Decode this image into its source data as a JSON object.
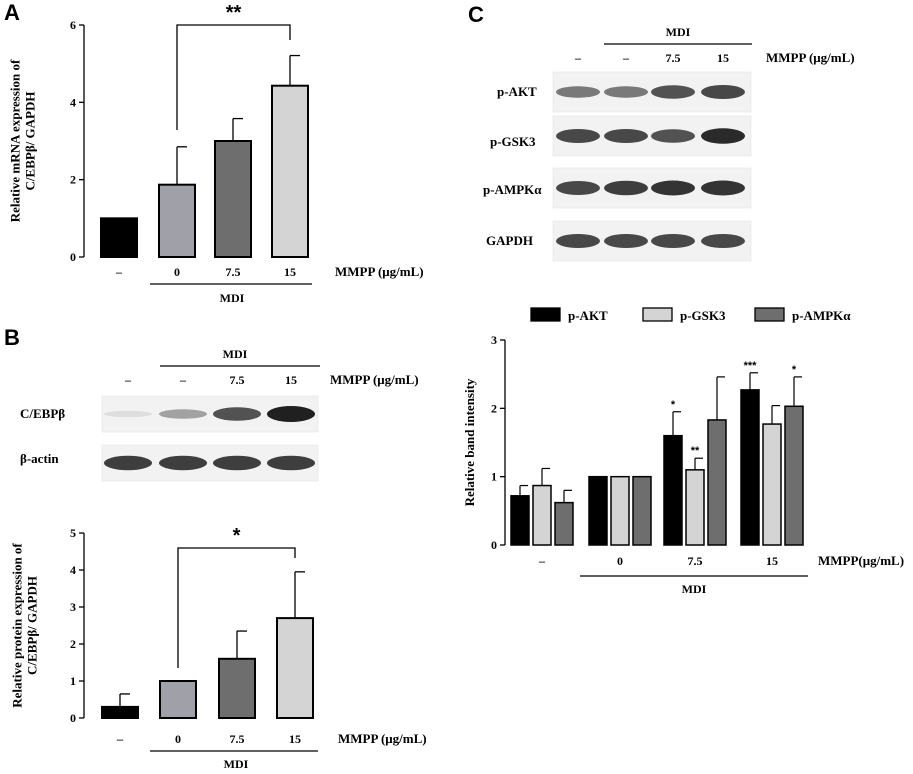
{
  "panels": {
    "a": "A",
    "b": "B",
    "c": "C"
  },
  "common": {
    "mdi": "MDI",
    "dash": "–",
    "mmpp_unit": "MMPP (μg/mL)",
    "mmpp_unit_c": "MMPP(μg/mL)"
  },
  "blots": {
    "b": {
      "header": [
        "–",
        "–",
        "7.5",
        "15"
      ],
      "rows": [
        {
          "label": "C/EBPβ",
          "bands": [
            0.05,
            0.35,
            0.75,
            1.0
          ]
        },
        {
          "label": "β-actin",
          "bands": [
            0.85,
            0.85,
            0.85,
            0.85
          ]
        }
      ]
    },
    "c": {
      "header": [
        "–",
        "–",
        "7.5",
        "15"
      ],
      "rows": [
        {
          "label": "p-AKT",
          "bands": [
            0.55,
            0.55,
            0.75,
            0.8
          ]
        },
        {
          "label": "p-GSK3",
          "bands": [
            0.8,
            0.8,
            0.75,
            0.95
          ]
        },
        {
          "label": "p-AMPKα",
          "bands": [
            0.8,
            0.85,
            0.9,
            0.9
          ]
        },
        {
          "label": "GAPDH",
          "bands": [
            0.8,
            0.8,
            0.8,
            0.8
          ]
        }
      ]
    }
  },
  "chart_data": [
    {
      "id": "a",
      "type": "bar",
      "categories": [
        "–",
        "0",
        "7.5",
        "15"
      ],
      "values": [
        1.0,
        1.87,
        3.0,
        4.43
      ],
      "errors": [
        0,
        0.98,
        0.58,
        0.78
      ],
      "colors": [
        "#000000",
        "#a0a0a8",
        "#6e6e6e",
        "#d4d4d4"
      ],
      "ylabel": "Relative mRNA expression of C/EBPβ/ GAPDH",
      "ylim": [
        0,
        6
      ],
      "yticks": [
        "0",
        "2",
        "4",
        "6"
      ],
      "significance": {
        "from": 1,
        "to": 3,
        "label": "**"
      }
    },
    {
      "id": "b",
      "type": "bar",
      "categories": [
        "–",
        "0",
        "7.5",
        "15"
      ],
      "values": [
        0.3,
        1.0,
        1.6,
        2.7
      ],
      "errors": [
        0.35,
        0,
        0.75,
        1.25
      ],
      "colors": [
        "#000000",
        "#a0a0a8",
        "#6e6e6e",
        "#d4d4d4"
      ],
      "ylabel": "Relative protein expression of C/EBPβ/ GAPDH",
      "ylim": [
        0,
        5
      ],
      "yticks": [
        "0",
        "1",
        "2",
        "3",
        "4",
        "5"
      ],
      "significance": {
        "from": 1,
        "to": 3,
        "label": "*"
      }
    },
    {
      "id": "c",
      "type": "bar",
      "categories": [
        "–",
        "0",
        "7.5",
        "15"
      ],
      "ylabel": "Relative band intensity",
      "ylim": [
        0,
        3
      ],
      "yticks": [
        "0",
        "1",
        "2",
        "3"
      ],
      "legend": "top",
      "series": [
        {
          "name": "p-AKT",
          "color": "#000000",
          "values": [
            0.72,
            1.0,
            1.6,
            2.27
          ],
          "errors": [
            0.15,
            0,
            0.35,
            0.25
          ],
          "stars": [
            "",
            "",
            "*",
            "***"
          ]
        },
        {
          "name": "p-GSK3",
          "color": "#d4d4d4",
          "values": [
            0.87,
            1.0,
            1.1,
            1.77
          ],
          "errors": [
            0.25,
            0,
            0.17,
            0.27
          ],
          "stars": [
            "",
            "",
            "**",
            ""
          ]
        },
        {
          "name": "p-AMPKα",
          "color": "#6e6e6e",
          "values": [
            0.62,
            1.0,
            1.83,
            2.03
          ],
          "errors": [
            0.18,
            0,
            0.63,
            0.43
          ],
          "stars": [
            "",
            "",
            "",
            "*"
          ]
        }
      ]
    }
  ]
}
